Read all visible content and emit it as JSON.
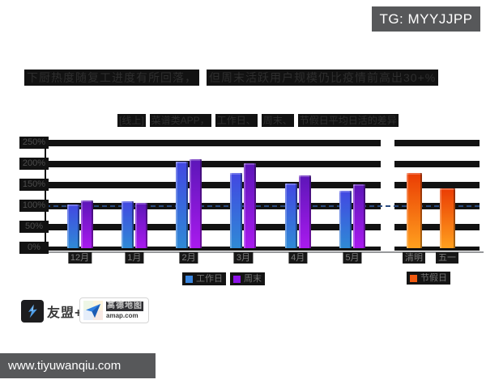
{
  "badge": {
    "text": "TG: MYYJJPP"
  },
  "title": {
    "segments": [
      "下厨热度随复工进度有所回落，",
      "但周末活跃用户规模仍比疫情前高出30+%"
    ]
  },
  "subtitle": {
    "segments": [
      "[线上]",
      "菜谱类APP，",
      "工作日、",
      "周末、",
      "节假日平均日活的差异"
    ]
  },
  "chart_data": {
    "type": "bar",
    "title": "下厨热度随复工进度有所回落，但周末活跃用户规模仍比疫情前高出30+%",
    "subtitle": "[线上] 菜谱类APP，工作日、周末、节假日平均日活的差异",
    "categories": [
      "12月",
      "1月",
      "2月",
      "3月",
      "4月",
      "5月"
    ],
    "series": [
      {
        "name": "工作日",
        "values": [
          103,
          112,
          205,
          178,
          153,
          137
        ],
        "color_top": "#4247e2",
        "color_bottom": "#2f8ad6",
        "legend_color": "#3a86e0"
      },
      {
        "name": "周末",
        "values": [
          113,
          107,
          212,
          201,
          174,
          151
        ],
        "color_top": "#5c16b8",
        "color_bottom": "#a91aee",
        "legend_color": "#8d12e8"
      }
    ],
    "holiday_group": {
      "name": "节假日",
      "categories": [
        "清明",
        "五一"
      ],
      "values": [
        178,
        142
      ],
      "color_top": "#ea3c04",
      "color_bottom": "#ffa01e",
      "legend_color": "#f0590f"
    },
    "yticks": [
      "250%",
      "200%",
      "150%",
      "100%",
      "50%",
      "0%"
    ],
    "ylim": [
      0,
      250
    ],
    "unit": "%",
    "baseline": 100,
    "xlabel": "",
    "ylabel": "",
    "legend_position": "bottom",
    "grid": "horizontal-bands"
  },
  "logos": {
    "umeng": {
      "text": "友盟+"
    },
    "amap": {
      "name": "高德地图",
      "domain": "amap.com"
    }
  },
  "footer": {
    "url": "www.tiyuwanqiu.com"
  }
}
